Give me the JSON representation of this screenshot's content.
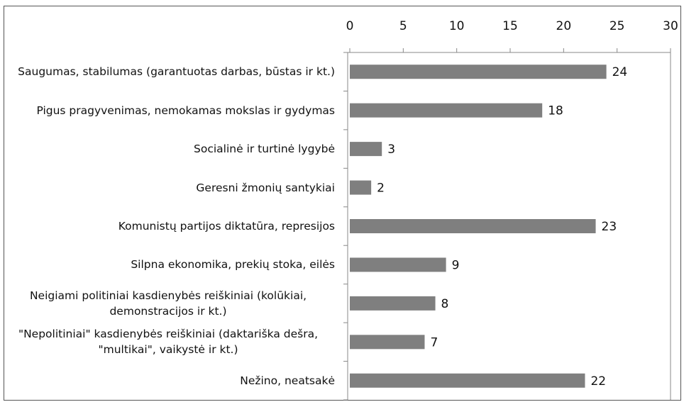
{
  "chart_data": {
    "type": "bar",
    "orientation": "horizontal",
    "categories": [
      "Saugumas, stabilumas (garantuotas darbas, būstas ir kt.)",
      "Pigus pragyvenimas, nemokamas mokslas ir gydymas",
      "Socialinė ir turtinė lygybė",
      "Geresni žmonių santykiai",
      "Komunistų partijos diktatūra, represijos",
      "Silpna ekonomika, prekių stoka, eilės",
      "Neigiami politiniai kasdienybės reiškiniai (kolūkiai, demonstracijos ir kt.)",
      "\"Nepolitiniai\" kasdienybės reiškiniai (daktariška dešra, \"multikai\", vaikystė ir kt.)",
      "Nežino, neatsakė"
    ],
    "values": [
      24,
      18,
      3,
      2,
      23,
      9,
      8,
      7,
      22
    ],
    "color": "#7f7f7f",
    "xlim": [
      0,
      30
    ],
    "xticks": [
      0,
      5,
      10,
      15,
      20,
      25,
      30
    ],
    "grid": false
  }
}
